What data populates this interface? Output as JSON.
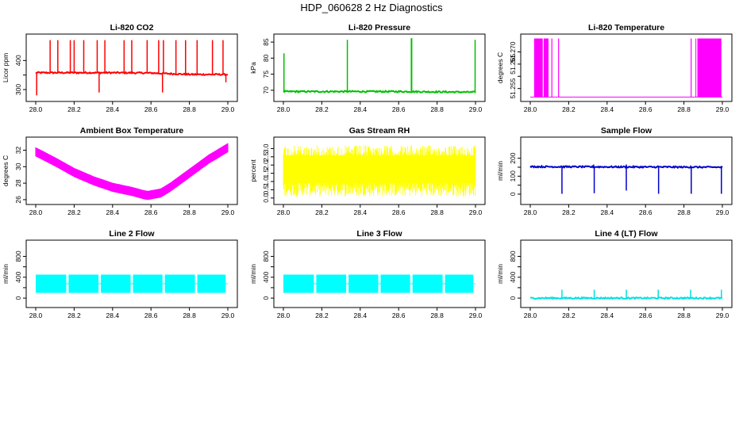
{
  "figure_title": "HDP_060628  2 Hz Diagnostics",
  "chart_data": [
    {
      "type": "line",
      "title": "Li-820 CO2",
      "ylabel": "Licor ppm",
      "color": "#ff0000",
      "xlim": [
        28.0,
        29.0
      ],
      "ylim": [
        270,
        480
      ],
      "xticks": [
        28.0,
        28.2,
        28.4,
        28.6,
        28.8,
        29.0
      ],
      "xtick_labels": [
        "28.0",
        "28.2",
        "28.4",
        "28.6",
        "28.8",
        "29.0"
      ],
      "yticks": [
        300,
        350,
        400
      ],
      "ytick_labels": [
        "300",
        "",
        "400"
      ],
      "pattern": "baseline_spikes",
      "baseline": [
        [
          28.0,
          358
        ],
        [
          28.4,
          358
        ],
        [
          28.6,
          357
        ],
        [
          28.8,
          352
        ],
        [
          29.0,
          352
        ]
      ],
      "spikes": [
        [
          28.075,
          470
        ],
        [
          28.115,
          470
        ],
        [
          28.18,
          470
        ],
        [
          28.2,
          470
        ],
        [
          28.25,
          470
        ],
        [
          28.32,
          470
        ],
        [
          28.36,
          470
        ],
        [
          28.46,
          470
        ],
        [
          28.5,
          470
        ],
        [
          28.58,
          470
        ],
        [
          28.64,
          470
        ],
        [
          28.665,
          470
        ],
        [
          28.73,
          470
        ],
        [
          28.78,
          470
        ],
        [
          28.84,
          470
        ],
        [
          28.92,
          470
        ],
        [
          28.975,
          470
        ]
      ],
      "down_spikes": [
        [
          28.005,
          280
        ],
        [
          28.33,
          290
        ],
        [
          28.66,
          290
        ],
        [
          28.99,
          325
        ]
      ]
    },
    {
      "type": "line",
      "title": "Li-820 Pressure",
      "ylabel": "kPa",
      "color": "#00c000",
      "xlim": [
        28.0,
        29.0
      ],
      "ylim": [
        67.5,
        86.5
      ],
      "xticks": [
        28.0,
        28.2,
        28.4,
        28.6,
        28.8,
        29.0
      ],
      "xtick_labels": [
        "28.0",
        "28.2",
        "28.4",
        "28.6",
        "28.8",
        "29.0"
      ],
      "yticks": [
        70,
        75,
        80,
        85
      ],
      "ytick_labels": [
        "70",
        "75",
        "80",
        "85"
      ],
      "pattern": "baseline_spikes",
      "baseline": [
        [
          28.0,
          69.6
        ],
        [
          28.6,
          69.6
        ],
        [
          29.0,
          69.4
        ]
      ],
      "spikes": [
        [
          28.003,
          81.5
        ],
        [
          28.333,
          85.7
        ],
        [
          28.666,
          86.2
        ],
        [
          28.668,
          86.2
        ],
        [
          28.998,
          85.7
        ]
      ],
      "down_spikes": []
    },
    {
      "type": "line",
      "title": "Li-820 Temperature",
      "ylabel": "degrees C",
      "color": "#ff00ff",
      "xlim": [
        28.0,
        29.0
      ],
      "ylim": [
        51.251,
        51.276
      ],
      "xticks": [
        28.0,
        28.2,
        28.4,
        28.6,
        28.8,
        29.0
      ],
      "xtick_labels": [
        "28.0",
        "28.2",
        "28.4",
        "28.6",
        "28.8",
        "29.0"
      ],
      "yticks": [
        51.255,
        51.26,
        51.265,
        51.27
      ],
      "ytick_labels": [
        "51.255",
        "",
        "51.265",
        "51.270"
      ],
      "pattern": "toggle",
      "low": 51.2515,
      "high": 51.2755,
      "toggle_ranges": [
        [
          28.02,
          28.065
        ],
        [
          28.07,
          28.095
        ],
        [
          28.11,
          28.115
        ],
        [
          28.145,
          28.15
        ],
        [
          28.835,
          28.84
        ],
        [
          28.86,
          28.862
        ],
        [
          28.87,
          28.995
        ]
      ]
    },
    {
      "type": "line",
      "title": "Ambient Box Temperature",
      "ylabel": "degrees C",
      "color": "#ff00ff",
      "xlim": [
        28.0,
        29.0
      ],
      "ylim": [
        25.8,
        33.2
      ],
      "xticks": [
        28.0,
        28.2,
        28.4,
        28.6,
        28.8,
        29.0
      ],
      "xtick_labels": [
        "28.0",
        "28.2",
        "28.4",
        "28.6",
        "28.8",
        "29.0"
      ],
      "yticks": [
        26,
        28,
        30,
        32
      ],
      "ytick_labels": [
        "26",
        "28",
        "30",
        "32"
      ],
      "pattern": "band",
      "center": [
        [
          28.0,
          31.8
        ],
        [
          28.1,
          30.6
        ],
        [
          28.2,
          29.3
        ],
        [
          28.3,
          28.3
        ],
        [
          28.4,
          27.5
        ],
        [
          28.5,
          27.0
        ],
        [
          28.58,
          26.5
        ],
        [
          28.65,
          26.8
        ],
        [
          28.7,
          27.5
        ],
        [
          28.8,
          29.2
        ],
        [
          28.9,
          30.9
        ],
        [
          29.0,
          32.3
        ]
      ],
      "halfwidth": 0.5
    },
    {
      "type": "line",
      "title": "Gas Stream RH",
      "ylabel": "percent",
      "color": "#ffff00",
      "xlim": [
        28.0,
        29.0
      ],
      "ylim": [
        -0.2,
        3.5
      ],
      "xticks": [
        28.0,
        28.2,
        28.4,
        28.6,
        28.8,
        29.0
      ],
      "xtick_labels": [
        "28.0",
        "28.2",
        "28.4",
        "28.6",
        "28.8",
        "29.0"
      ],
      "yticks": [
        0.0,
        0.5,
        1.0,
        1.5,
        2.0,
        2.5,
        3.0
      ],
      "ytick_labels": [
        "0.0",
        "0.5",
        "1.0",
        "1.5",
        "2.0",
        "2.5",
        "3.0"
      ],
      "pattern": "noise",
      "low": 0.1,
      "high": 3.2,
      "core_low": 0.9,
      "core_high": 2.6
    },
    {
      "type": "line",
      "title": "Sample Flow",
      "ylabel": "ml/min",
      "color": "#0000cc",
      "xlim": [
        28.0,
        29.0
      ],
      "ylim": [
        -40,
        300
      ],
      "xticks": [
        28.0,
        28.2,
        28.4,
        28.6,
        28.8,
        29.0
      ],
      "xtick_labels": [
        "28.0",
        "28.2",
        "28.4",
        "28.6",
        "28.8",
        "29.0"
      ],
      "yticks": [
        0,
        50,
        100,
        150,
        200
      ],
      "ytick_labels": [
        "0",
        "",
        "100",
        "",
        "200"
      ],
      "pattern": "baseline_spikes",
      "baseline": [
        [
          28.0,
          153
        ],
        [
          29.0,
          150
        ]
      ],
      "spikes": [
        [
          28.16,
          160
        ],
        [
          28.33,
          165
        ],
        [
          28.5,
          165
        ],
        [
          28.665,
          160
        ],
        [
          28.835,
          160
        ]
      ],
      "down_spikes": [
        [
          28.165,
          2
        ],
        [
          28.333,
          5
        ],
        [
          28.5,
          20
        ],
        [
          28.668,
          2
        ],
        [
          28.838,
          2
        ],
        [
          28.995,
          2
        ]
      ]
    },
    {
      "type": "line",
      "title": "Line 2 Flow",
      "ylabel": "ml/min",
      "color": "#00ffff",
      "xlim": [
        28.0,
        29.0
      ],
      "ylim": [
        -120,
        1050
      ],
      "xticks": [
        28.0,
        28.2,
        28.4,
        28.6,
        28.8,
        29.0
      ],
      "xtick_labels": [
        "28.0",
        "28.2",
        "28.4",
        "28.6",
        "28.8",
        "29.0"
      ],
      "yticks": [
        0,
        200,
        400,
        600,
        800
      ],
      "ytick_labels": [
        "0",
        "",
        "400",
        "",
        "800"
      ],
      "pattern": "blocks",
      "low": 100,
      "high": 450,
      "gaps": [
        28.165,
        28.333,
        28.5,
        28.666,
        28.835,
        28.995
      ]
    },
    {
      "type": "line",
      "title": "Line 3 Flow",
      "ylabel": "ml/min",
      "color": "#00ffff",
      "xlim": [
        28.0,
        29.0
      ],
      "ylim": [
        -120,
        1050
      ],
      "xticks": [
        28.0,
        28.2,
        28.4,
        28.6,
        28.8,
        29.0
      ],
      "xtick_labels": [
        "28.0",
        "28.2",
        "28.4",
        "28.6",
        "28.8",
        "29.0"
      ],
      "yticks": [
        0,
        200,
        400,
        600,
        800
      ],
      "ytick_labels": [
        "0",
        "",
        "400",
        "",
        "800"
      ],
      "pattern": "blocks",
      "low": 100,
      "high": 450,
      "gaps": [
        28.165,
        28.333,
        28.5,
        28.666,
        28.835,
        28.995
      ]
    },
    {
      "type": "line",
      "title": "Line 4 (LT) Flow",
      "ylabel": "ml/min",
      "color": "#00e0e0",
      "xlim": [
        28.0,
        29.0
      ],
      "ylim": [
        -120,
        1050
      ],
      "xticks": [
        28.0,
        28.2,
        28.4,
        28.6,
        28.8,
        29.0
      ],
      "xtick_labels": [
        "28.0",
        "28.2",
        "28.4",
        "28.6",
        "28.8",
        "29.0"
      ],
      "yticks": [
        0,
        200,
        400,
        600,
        800
      ],
      "ytick_labels": [
        "0",
        "",
        "400",
        "",
        "800"
      ],
      "pattern": "baseline_spikes",
      "baseline": [
        [
          28.0,
          0
        ],
        [
          29.0,
          0
        ]
      ],
      "spikes": [
        [
          28.165,
          160
        ],
        [
          28.333,
          160
        ],
        [
          28.5,
          160
        ],
        [
          28.666,
          160
        ],
        [
          28.835,
          160
        ],
        [
          28.995,
          160
        ]
      ],
      "down_spikes": []
    }
  ]
}
